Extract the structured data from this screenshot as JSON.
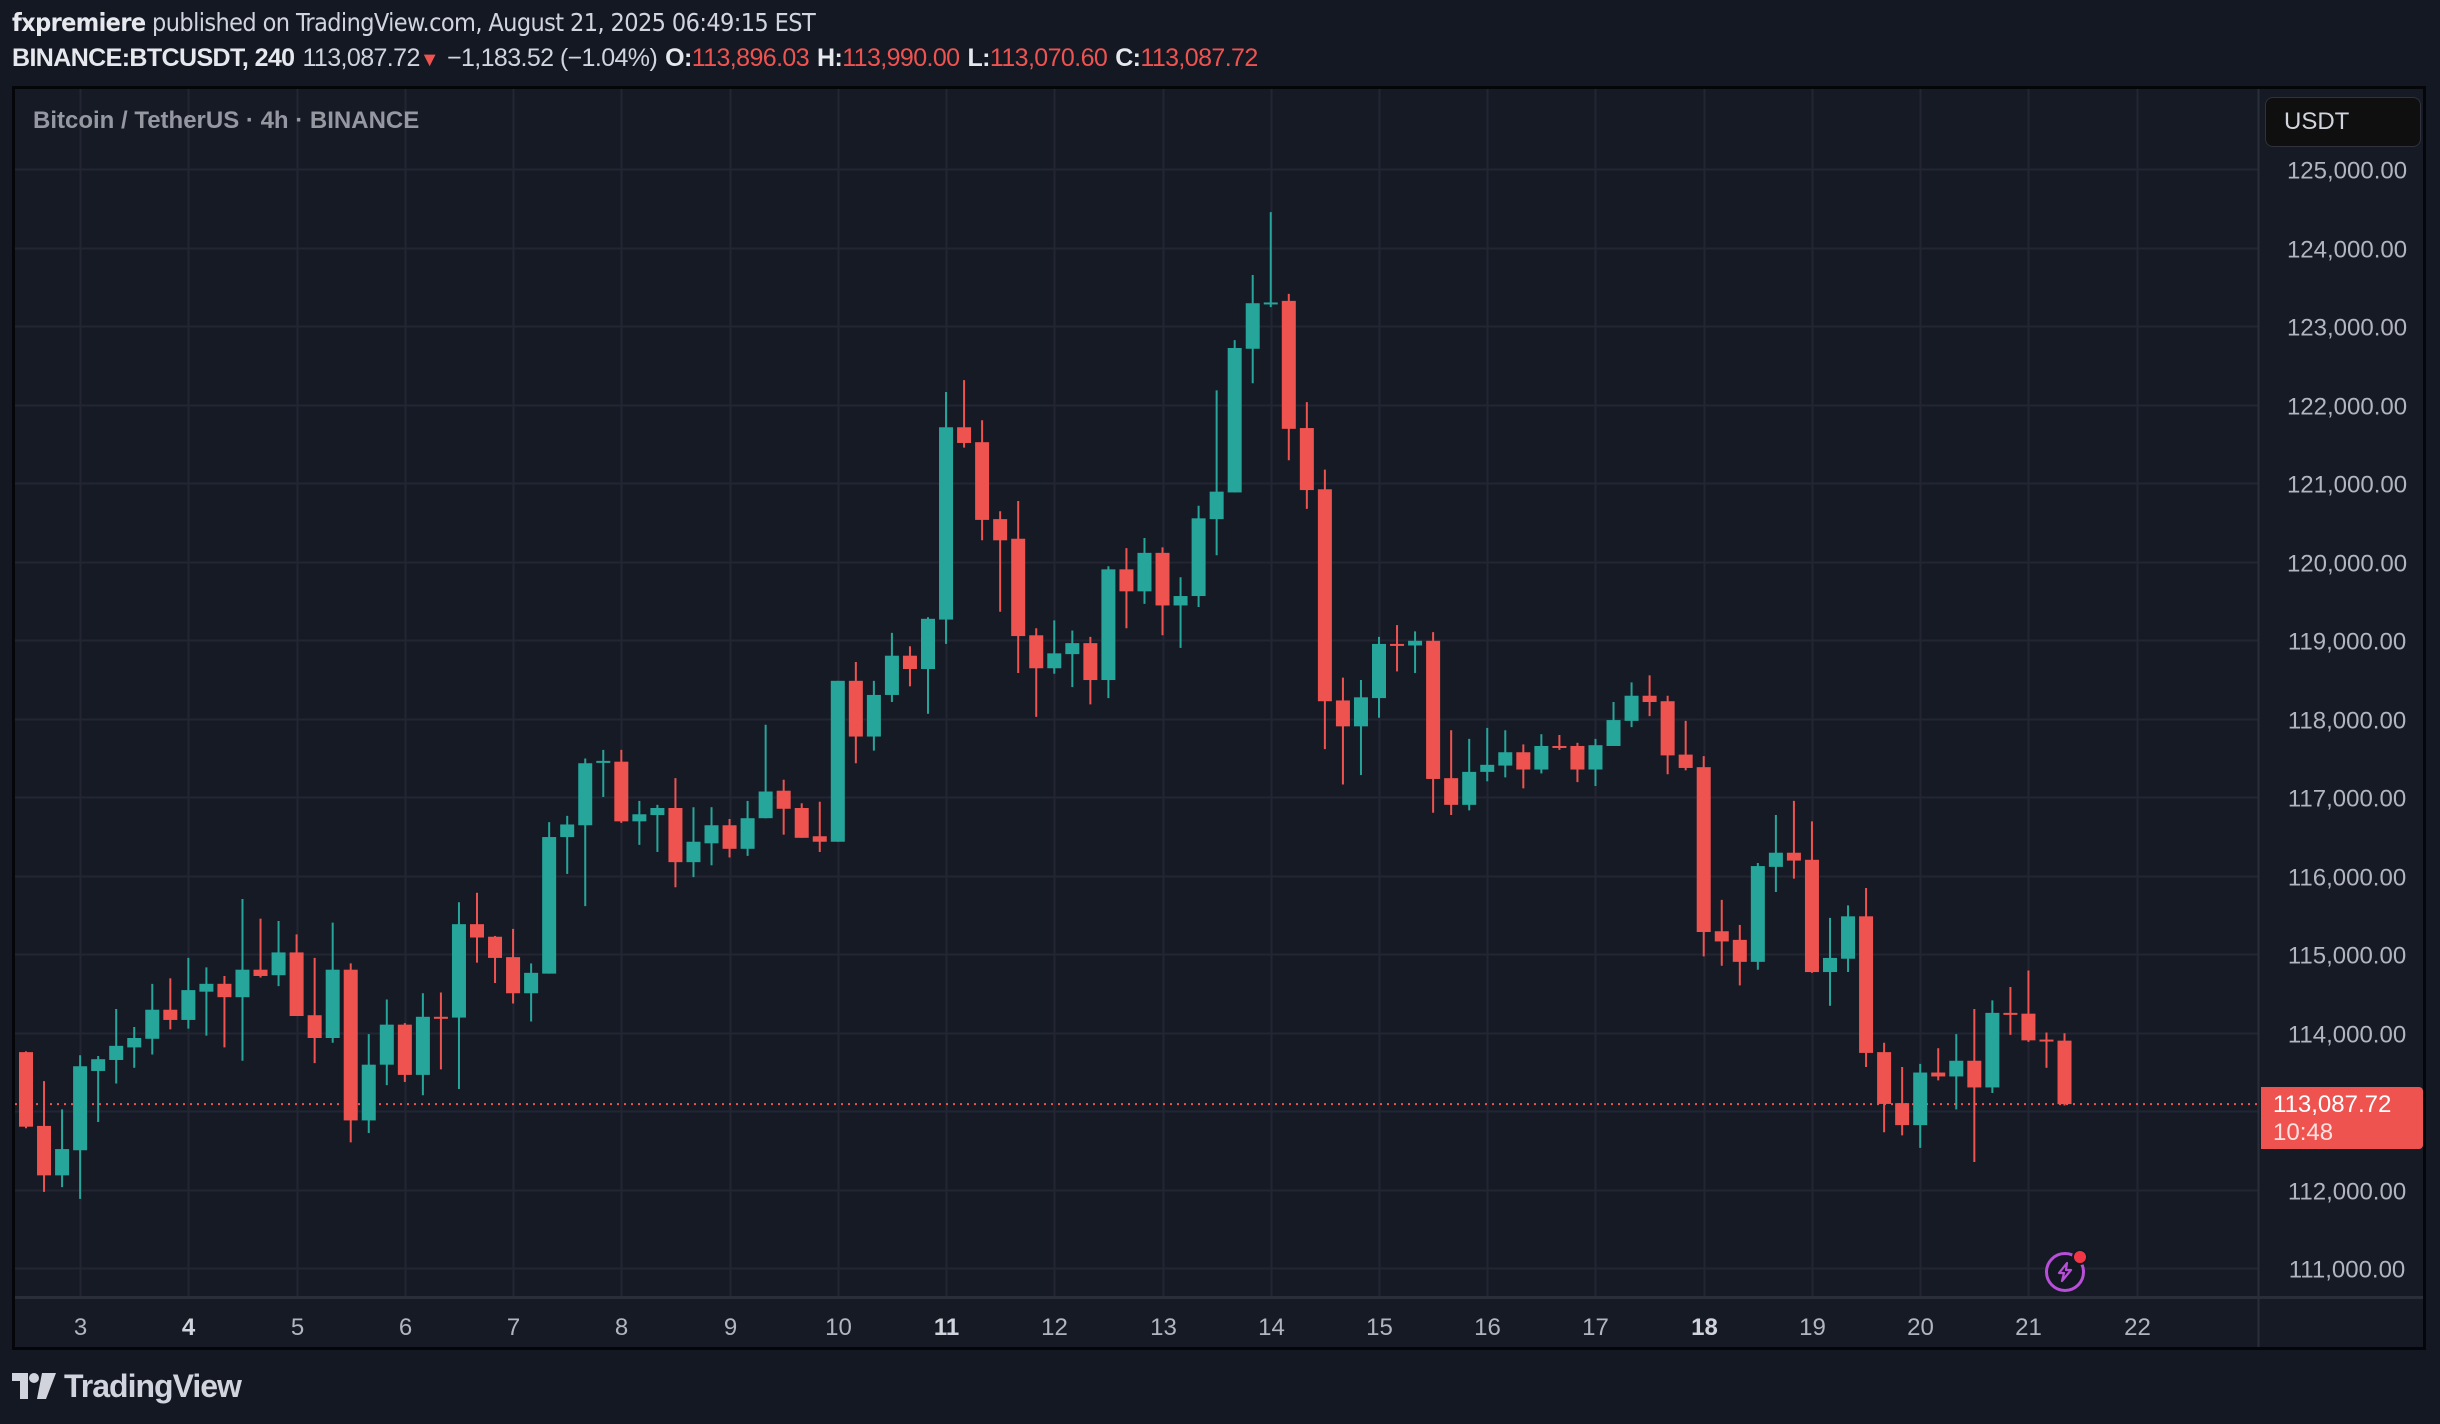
{
  "header": {
    "author": "fxpremiere",
    "published_text": "published on TradingView.com, August 21, 2025 06:49:15 EST",
    "symbol": "BINANCE:BTCUSDT, 240",
    "last_price": "113,087.72",
    "change_arrow": "▼",
    "change": "−1,183.52 (−1.04%)",
    "open_label": "O:",
    "open": "113,896.03",
    "high_label": "H:",
    "high": "113,990.00",
    "low_label": "L:",
    "low": "113,070.60",
    "close_label": "C:",
    "close": "113,087.72"
  },
  "chart": {
    "title": "Bitcoin / TetherUS · 4h · BINANCE",
    "currency_button": "USDT",
    "current_price_label": "113,087.72",
    "countdown": "10:48",
    "alert_icon": "lightning-alert-icon",
    "colors": {
      "up": "#26a69a",
      "down": "#ef5350",
      "grid": "#232632",
      "background": "#161a25",
      "axis_text": "#b2b5be",
      "current_price_line": "#ef5350"
    }
  },
  "footer": {
    "logo_text": "TradingView"
  },
  "chart_data": {
    "type": "candlestick",
    "title": "Bitcoin / TetherUS · 4h · BINANCE",
    "symbol": "BINANCE:BTCUSDT",
    "interval": "240",
    "xlabel": "",
    "ylabel": "USDT",
    "ylim": [
      110700,
      125800
    ],
    "y_ticks": [
      125000,
      124000,
      123000,
      122000,
      121000,
      120000,
      119000,
      118000,
      117000,
      116000,
      115000,
      114000,
      113000,
      112000,
      111000
    ],
    "y_tick_labels": [
      "125,000.00",
      "124,000.00",
      "123,000.00",
      "122,000.00",
      "121,000.00",
      "120,000.00",
      "119,000.00",
      "118,000.00",
      "117,000.00",
      "116,000.00",
      "115,000.00",
      "114,000.00",
      "113,000.00",
      "112,000.00",
      "111,000.00"
    ],
    "x_ticks": [
      {
        "label": "3",
        "candle_index": 3,
        "bold": false
      },
      {
        "label": "4",
        "candle_index": 9,
        "bold": true
      },
      {
        "label": "5",
        "candle_index": 15,
        "bold": false
      },
      {
        "label": "6",
        "candle_index": 21,
        "bold": false
      },
      {
        "label": "7",
        "candle_index": 27,
        "bold": false
      },
      {
        "label": "8",
        "candle_index": 33,
        "bold": false
      },
      {
        "label": "9",
        "candle_index": 39,
        "bold": false
      },
      {
        "label": "10",
        "candle_index": 45,
        "bold": false
      },
      {
        "label": "11",
        "candle_index": 51,
        "bold": true
      },
      {
        "label": "12",
        "candle_index": 57,
        "bold": false
      },
      {
        "label": "13",
        "candle_index": 63,
        "bold": false
      },
      {
        "label": "14",
        "candle_index": 69,
        "bold": false
      },
      {
        "label": "15",
        "candle_index": 75,
        "bold": false
      },
      {
        "label": "16",
        "candle_index": 81,
        "bold": false
      },
      {
        "label": "17",
        "candle_index": 87,
        "bold": false
      },
      {
        "label": "18",
        "candle_index": 93,
        "bold": true
      },
      {
        "label": "19",
        "candle_index": 99,
        "bold": false
      },
      {
        "label": "20",
        "candle_index": 105,
        "bold": false
      },
      {
        "label": "21",
        "candle_index": 111,
        "bold": false
      },
      {
        "label": "22",
        "candle_index": 117,
        "bold": false
      }
    ],
    "current_price": 113087.72,
    "grid": true,
    "candles": [
      [
        113750,
        113760,
        112780,
        112800
      ],
      [
        112810,
        113380,
        111970,
        112180
      ],
      [
        112180,
        113020,
        112030,
        112515
      ],
      [
        112500,
        113710,
        111880,
        113570
      ],
      [
        113510,
        113700,
        112860,
        113660
      ],
      [
        113650,
        114300,
        113350,
        113830
      ],
      [
        113810,
        114070,
        113550,
        113930
      ],
      [
        113920,
        114620,
        113720,
        114290
      ],
      [
        114290,
        114690,
        114040,
        114160
      ],
      [
        114160,
        114950,
        114050,
        114540
      ],
      [
        114520,
        114830,
        113960,
        114620
      ],
      [
        114620,
        114720,
        113810,
        114450
      ],
      [
        114450,
        115700,
        113640,
        114800
      ],
      [
        114800,
        115450,
        114700,
        114720
      ],
      [
        114730,
        115420,
        114590,
        115020
      ],
      [
        115020,
        115250,
        114210,
        114210
      ],
      [
        114220,
        114950,
        113610,
        113930
      ],
      [
        113930,
        115400,
        113870,
        114800
      ],
      [
        114800,
        114880,
        112600,
        112880
      ],
      [
        112880,
        113980,
        112720,
        113590
      ],
      [
        113590,
        114420,
        113330,
        114100
      ],
      [
        114100,
        114120,
        113370,
        113460
      ],
      [
        113460,
        114500,
        113200,
        114200
      ],
      [
        114200,
        114510,
        113530,
        114190
      ],
      [
        114190,
        115660,
        113280,
        115380
      ],
      [
        115380,
        115780,
        114890,
        115210
      ],
      [
        115220,
        115230,
        114630,
        114950
      ],
      [
        114960,
        115320,
        114370,
        114500
      ],
      [
        114500,
        114880,
        114140,
        114760
      ],
      [
        114750,
        116680,
        114750,
        116490
      ],
      [
        116490,
        116760,
        116020,
        116650
      ],
      [
        116640,
        117490,
        115610,
        117430
      ],
      [
        117440,
        117600,
        117000,
        117460
      ],
      [
        117450,
        117600,
        116670,
        116690
      ],
      [
        116690,
        116950,
        116390,
        116780
      ],
      [
        116770,
        116900,
        116300,
        116860
      ],
      [
        116860,
        117240,
        115850,
        116170
      ],
      [
        116170,
        116870,
        115980,
        116430
      ],
      [
        116410,
        116870,
        116130,
        116640
      ],
      [
        116640,
        116720,
        116230,
        116340
      ],
      [
        116340,
        116950,
        116250,
        116730
      ],
      [
        116730,
        117920,
        116730,
        117070
      ],
      [
        117080,
        117220,
        116520,
        116850
      ],
      [
        116860,
        116920,
        116480,
        116480
      ],
      [
        116500,
        116940,
        116300,
        116430
      ],
      [
        116430,
        118480,
        116430,
        118480
      ],
      [
        118480,
        118720,
        117430,
        117770
      ],
      [
        117770,
        118480,
        117590,
        118300
      ],
      [
        118300,
        119090,
        118210,
        118800
      ],
      [
        118800,
        118920,
        118410,
        118630
      ],
      [
        118630,
        119290,
        118060,
        119270
      ],
      [
        119260,
        122160,
        118950,
        121710
      ],
      [
        121710,
        122310,
        121450,
        121510
      ],
      [
        121520,
        121800,
        120270,
        120530
      ],
      [
        120540,
        120640,
        119360,
        120270
      ],
      [
        120290,
        120770,
        118580,
        119050
      ],
      [
        119060,
        119150,
        118020,
        118640
      ],
      [
        118640,
        119250,
        118570,
        118830
      ],
      [
        118820,
        119120,
        118400,
        118960
      ],
      [
        118960,
        119040,
        118180,
        118490
      ],
      [
        118490,
        119940,
        118260,
        119900
      ],
      [
        119900,
        120170,
        119150,
        119620
      ],
      [
        119620,
        120300,
        119460,
        120110
      ],
      [
        120110,
        120180,
        119060,
        119440
      ],
      [
        119440,
        119800,
        118900,
        119560
      ],
      [
        119560,
        120710,
        119420,
        120550
      ],
      [
        120540,
        122180,
        120080,
        120890
      ],
      [
        120880,
        122820,
        120880,
        122720
      ],
      [
        122710,
        123650,
        122270,
        123290
      ],
      [
        123290,
        124450,
        123240,
        123300
      ],
      [
        123320,
        123410,
        121290,
        121690
      ],
      [
        121700,
        122030,
        120670,
        120910
      ],
      [
        120920,
        121170,
        117610,
        118220
      ],
      [
        118230,
        118520,
        117160,
        117900
      ],
      [
        117900,
        118490,
        117280,
        118270
      ],
      [
        118260,
        119040,
        118010,
        118950
      ],
      [
        118950,
        119190,
        118600,
        118940
      ],
      [
        118930,
        119110,
        118580,
        118990
      ],
      [
        118990,
        119100,
        116800,
        117230
      ],
      [
        117240,
        117850,
        116770,
        116900
      ],
      [
        116900,
        117740,
        116830,
        117320
      ],
      [
        117320,
        117880,
        117200,
        117410
      ],
      [
        117400,
        117850,
        117250,
        117570
      ],
      [
        117570,
        117670,
        117110,
        117350
      ],
      [
        117350,
        117800,
        117300,
        117650
      ],
      [
        117650,
        117790,
        117600,
        117640
      ],
      [
        117650,
        117690,
        117190,
        117350
      ],
      [
        117350,
        117740,
        117140,
        117660
      ],
      [
        117650,
        118210,
        117650,
        117980
      ],
      [
        117970,
        118460,
        117890,
        118290
      ],
      [
        118290,
        118550,
        118030,
        118210
      ],
      [
        118220,
        118290,
        117290,
        117530
      ],
      [
        117540,
        117970,
        117340,
        117370
      ],
      [
        117380,
        117520,
        114970,
        115280
      ],
      [
        115290,
        115690,
        114850,
        115160
      ],
      [
        115180,
        115370,
        114600,
        114900
      ],
      [
        114900,
        116160,
        114800,
        116120
      ],
      [
        116110,
        116770,
        115790,
        116290
      ],
      [
        116290,
        116950,
        115960,
        116190
      ],
      [
        116200,
        116690,
        114760,
        114770
      ],
      [
        114770,
        115460,
        114340,
        114950
      ],
      [
        114940,
        115620,
        114770,
        115480
      ],
      [
        115480,
        115840,
        113560,
        113740
      ],
      [
        113750,
        113870,
        112730,
        113090
      ],
      [
        113100,
        113560,
        112690,
        112820
      ],
      [
        112820,
        113600,
        112530,
        113490
      ],
      [
        113490,
        113800,
        113390,
        113440
      ],
      [
        113440,
        113980,
        113020,
        113640
      ],
      [
        113640,
        114300,
        112350,
        113300
      ],
      [
        113300,
        114410,
        113230,
        114250
      ],
      [
        114250,
        114580,
        113970,
        114240
      ],
      [
        114240,
        114790,
        113880,
        113900
      ],
      [
        113910,
        114000,
        113550,
        113896.03
      ],
      [
        113896.03,
        113990,
        113070.6,
        113087.72
      ]
    ],
    "candle_format": [
      "open",
      "high",
      "low",
      "close"
    ]
  }
}
